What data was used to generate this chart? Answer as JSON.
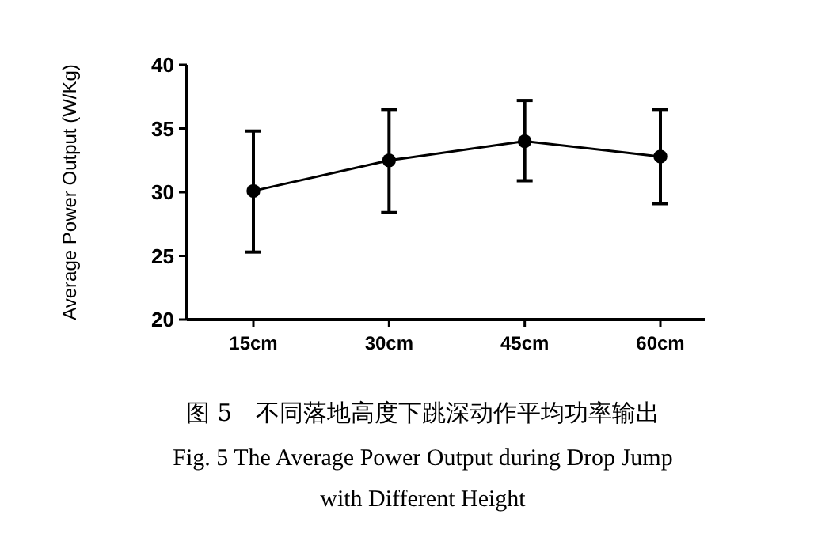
{
  "chart_data": {
    "type": "line",
    "ylabel": "Average Power Output (W/Kg)",
    "categories": [
      "15cm",
      "30cm",
      "45cm",
      "60cm"
    ],
    "series": [
      {
        "color": "#000000",
        "values": [
          30.1,
          32.5,
          34.0,
          32.8
        ],
        "errors": [
          [
            25.3,
            34.8
          ],
          [
            28.4,
            36.5
          ],
          [
            30.9,
            37.2
          ],
          [
            29.1,
            36.5
          ]
        ]
      }
    ],
    "ylim": [
      20,
      40
    ],
    "yticks": [
      20,
      25,
      30,
      35,
      40
    ],
    "marker": "circle",
    "grid": false,
    "annotations": [
      "图 5　不同落地高度下跳深动作平均功率输出",
      "Fig. 5 The Average Power Output during Drop Jump with Different Height"
    ]
  }
}
